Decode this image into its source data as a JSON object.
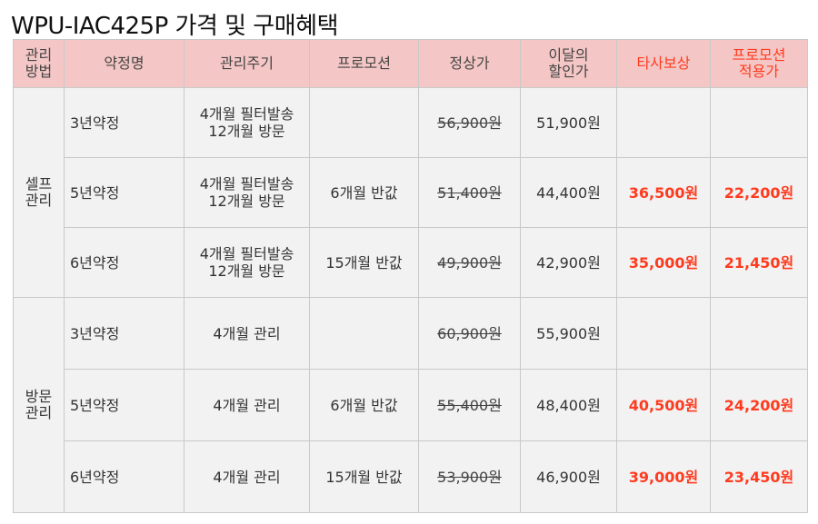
{
  "title": "WPU-IAC425P 가격 및 구매혜택",
  "headers": [
    "관리\n방법",
    "약정명",
    "관리주기",
    "프로모션",
    "정상가",
    "이달의\n할인가",
    "타사보상",
    "프로모션\n적용가"
  ],
  "accent_color": "#ff3b1f",
  "header_bg": "#f4c7c6",
  "groups": [
    {
      "method": "셀프\n관리",
      "rows": [
        {
          "contract": "3년약정",
          "cycle": "4개월 필터발송\n12개월 방문",
          "promo": "",
          "regular": "56,900원",
          "discount": "51,900원",
          "competitor": "",
          "final": ""
        },
        {
          "contract": "5년약정",
          "cycle": "4개월 필터발송\n12개월 방문",
          "promo": "6개월 반값",
          "regular": "51,400원",
          "discount": "44,400원",
          "competitor": "36,500원",
          "final": "22,200원"
        },
        {
          "contract": "6년약정",
          "cycle": "4개월 필터발송\n12개월 방문",
          "promo": "15개월 반값",
          "regular": "49,900원",
          "discount": "42,900원",
          "competitor": "35,000원",
          "final": "21,450원"
        }
      ]
    },
    {
      "method": "방문\n관리",
      "rows": [
        {
          "contract": "3년약정",
          "cycle": "4개월 관리",
          "promo": "",
          "regular": "60,900원",
          "discount": "55,900원",
          "competitor": "",
          "final": ""
        },
        {
          "contract": "5년약정",
          "cycle": "4개월 관리",
          "promo": "6개월 반값",
          "regular": "55,400원",
          "discount": "48,400원",
          "competitor": "40,500원",
          "final": "24,200원"
        },
        {
          "contract": "6년약정",
          "cycle": "4개월 관리",
          "promo": "15개월 반값",
          "regular": "53,900원",
          "discount": "46,900원",
          "competitor": "39,000원",
          "final": "23,450원"
        }
      ]
    }
  ]
}
